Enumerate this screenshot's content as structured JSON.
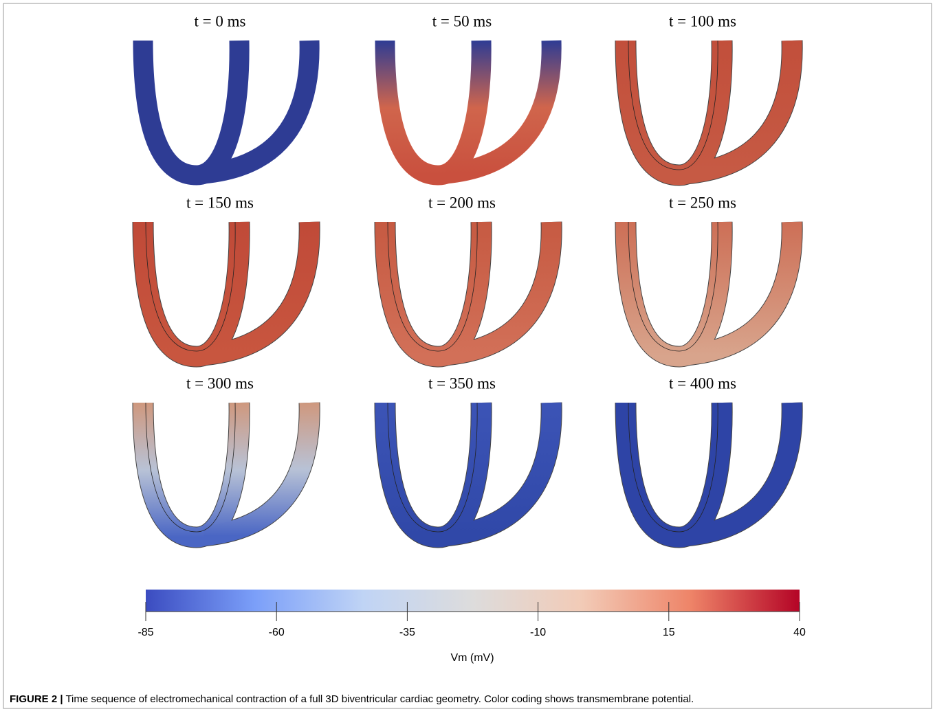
{
  "figure": {
    "panels": [
      {
        "title": "t = 0 ms",
        "colors": [
          "#2e3c94",
          "#2e3c94"
        ]
      },
      {
        "title": "t = 50 ms",
        "colors": [
          "#2e3c94",
          "#d0654c",
          "#c9503e"
        ]
      },
      {
        "title": "t = 100 ms",
        "colors": [
          "#c24f3b",
          "#c65a44"
        ]
      },
      {
        "title": "t = 150 ms",
        "colors": [
          "#c04a38",
          "#c8563f"
        ]
      },
      {
        "title": "t = 200 ms",
        "colors": [
          "#c65a42",
          "#d27058"
        ]
      },
      {
        "title": "t = 250 ms",
        "colors": [
          "#cd6f56",
          "#d8a48c"
        ]
      },
      {
        "title": "t = 300 ms",
        "colors": [
          "#cf987e",
          "#b8c2d6",
          "#4a66c4"
        ]
      },
      {
        "title": "t = 350 ms",
        "colors": [
          "#3c54b6",
          "#3048a8"
        ]
      },
      {
        "title": "t = 400 ms",
        "colors": [
          "#2e44a6",
          "#2e44a6"
        ]
      }
    ],
    "colorbar": {
      "label": "Vm (mV)",
      "lim": [
        -85,
        40
      ],
      "ticks": [
        -85,
        -60,
        -35,
        -10,
        15,
        40
      ],
      "colors": [
        "#3b4cc0",
        "#7b9ff9",
        "#c0d4f5",
        "#dddcdc",
        "#f2cbb7",
        "#ee8468",
        "#b40426"
      ]
    },
    "caption": {
      "label": "FIGURE 2 |",
      "text": "Time sequence of electromechanical contraction of a full 3D biventricular cardiac geometry. Color coding shows transmembrane potential."
    }
  }
}
